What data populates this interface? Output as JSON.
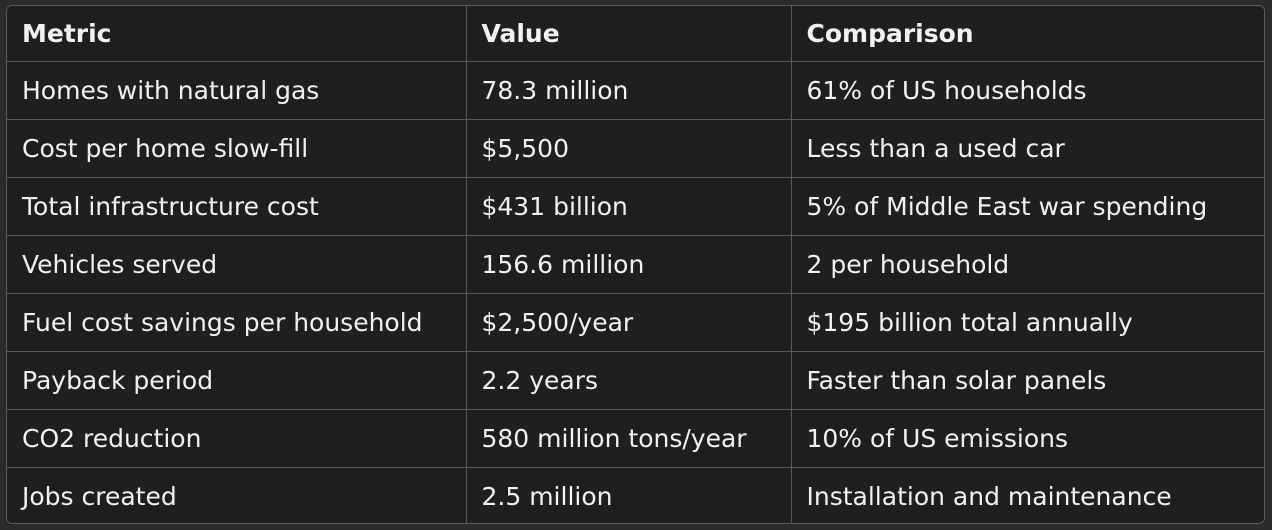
{
  "table": {
    "headers": [
      "Metric",
      "Value",
      "Comparison"
    ],
    "rows": [
      [
        "Homes with natural gas",
        "78.3 million",
        "61% of US households"
      ],
      [
        "Cost per home slow-fill",
        "$5,500",
        "Less than a used car"
      ],
      [
        "Total infrastructure cost",
        "$431 billion",
        "5% of Middle East war spending"
      ],
      [
        "Vehicles served",
        "156.6 million",
        "2 per household"
      ],
      [
        "Fuel cost savings per household",
        "$2,500/year",
        "$195 billion total annually"
      ],
      [
        "Payback period",
        "2.2 years",
        "Faster than solar panels"
      ],
      [
        "CO2 reduction",
        "580 million tons/year",
        "10% of US emissions"
      ],
      [
        "Jobs created",
        "2.5 million",
        "Installation and maintenance"
      ]
    ]
  }
}
